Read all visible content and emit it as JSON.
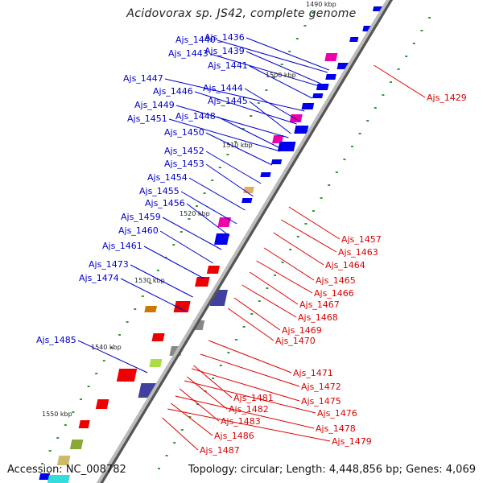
{
  "map": {
    "title": "Acidovorax sp. JS42, complete genome",
    "accession_label": "Accession: NC_008782",
    "summary_label": "Topology: circular; Length: 4,448,856 bp; Genes: 4,069",
    "colors": {
      "forward_label": "#0000cc",
      "reverse_label": "#dd0000",
      "backbone": "#888888",
      "tick": "#339933"
    },
    "kbp_markers": [
      "1490 kbp",
      "1500 kbp",
      "1510 kbp",
      "1520 kbp",
      "1530 kbp",
      "1540 kbp",
      "1550 kbp"
    ],
    "forward_labels": [
      "Ajs_1436",
      "Ajs_1440",
      "Ajs_1439",
      "Ajs_1443",
      "Ajs_1441",
      "Ajs_1447",
      "Ajs_1444",
      "Ajs_1446",
      "Ajs_1445",
      "Ajs_1449",
      "Ajs_1448",
      "Ajs_1451",
      "Ajs_1450",
      "Ajs_1452",
      "Ajs_1453",
      "Ajs_1454",
      "Ajs_1455",
      "Ajs_1456",
      "Ajs_1459",
      "Ajs_1460",
      "Ajs_1461",
      "Ajs_1473",
      "Ajs_1474",
      "Ajs_1485"
    ],
    "reverse_labels": [
      "Ajs_1429",
      "Ajs_1457",
      "Ajs_1463",
      "Ajs_1464",
      "Ajs_1465",
      "Ajs_1466",
      "Ajs_1467",
      "Ajs_1468",
      "Ajs_1469",
      "Ajs_1470",
      "Ajs_1471",
      "Ajs_1472",
      "Ajs_1481",
      "Ajs_1475",
      "Ajs_1482",
      "Ajs_1476",
      "Ajs_1483",
      "Ajs_1478",
      "Ajs_1486",
      "Ajs_1479",
      "Ajs_1487"
    ]
  }
}
